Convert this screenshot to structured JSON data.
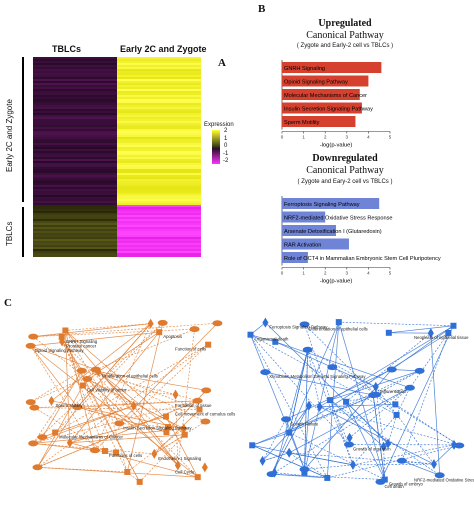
{
  "panel_labels": {
    "a": "A",
    "b": "B",
    "c": "C"
  },
  "heatmap": {
    "col_tblcs": "TBLCs",
    "col_early": "Early 2C and Zygote",
    "row_early": "Early 2C and Zygote",
    "row_tblcs": "TBLCs",
    "legend_title": "Expression",
    "legend_ticks": [
      "2",
      "1",
      "0",
      "-1",
      "-2"
    ]
  },
  "up_chart": {
    "title": "Upregulated",
    "subtitle": "Canonical  Pathway",
    "comparison": "( Zygote and Early-2 cell  vs  TBLCs )",
    "xlabel": "-log(p-value)",
    "ticks": [
      "0",
      "1",
      "2",
      "3",
      "4",
      "5"
    ]
  },
  "down_chart": {
    "title": "Downregulated",
    "subtitle": "Canonical  Pathway",
    "comparison": "( Zygote and Eary-2 cell  vs  TBLCs )",
    "xlabel": "-log(p-value)",
    "ticks": [
      "0",
      "1",
      "2",
      "3",
      "4",
      "5"
    ]
  },
  "chart_data": [
    {
      "type": "bar",
      "orientation": "horizontal",
      "title": "Upregulated Canonical Pathway",
      "xlabel": "-log(p-value)",
      "xlim": [
        0,
        5
      ],
      "color": "#d6402f",
      "categories": [
        "GNRH Signaling",
        "Opioid Signaling Pathway",
        "Molecular Mechanisms of Cancer",
        "Insulin Secretion Signaling Pathway",
        "Sperm Motility"
      ],
      "values": [
        4.6,
        4.0,
        3.6,
        3.7,
        3.4
      ]
    },
    {
      "type": "bar",
      "orientation": "horizontal",
      "title": "Downregulated Canonical Pathway",
      "xlabel": "-log(p-value)",
      "xlim": [
        0,
        5
      ],
      "color": "#6f84d6",
      "categories": [
        "Ferroptosis Signaling Pathway",
        "NRF2-mediated Oxidative Stress Response",
        "Arsenate Detoxification I (Glutaredoxin)",
        "RAR Activation",
        "Role of OCT4 in Mammalian Embryonic Stem Cell Pluripotency"
      ],
      "values": [
        4.5,
        2.0,
        2.5,
        3.1,
        1.2
      ]
    }
  ],
  "network_left": {
    "color": "#e07b2e",
    "labels": [
      "Cell movement of cumulus cells",
      "Proliferation of epithelial cells",
      "Apoptosis",
      "Opioid Signaling Pathway",
      "Cell Cycle",
      "Insulin Secretion Signaling Pathway",
      "Molecular Mechanisms of Cancer",
      "Cell viability of tumor",
      "GNRH Signaling",
      "Prostate cancer",
      "Endothelin-1 Signaling",
      "Formation of tissue",
      "Sperm Motility",
      "Function of cells",
      "Functions of cells"
    ]
  },
  "network_right": {
    "color": "#2f6fd6",
    "labels": [
      "Cell death",
      "Differentiation of epithelial cells",
      "NRF2-mediated Oxidative Stress Response",
      "Neoplasia of epithelial tissue",
      "Growth of organism",
      "Xenobiotic Metabolism General Signaling Pathway",
      "Organismal death",
      "Differentiation",
      "Growth Failure",
      "Ferroptosis Signaling Pathway",
      "Growth of embryo"
    ]
  }
}
